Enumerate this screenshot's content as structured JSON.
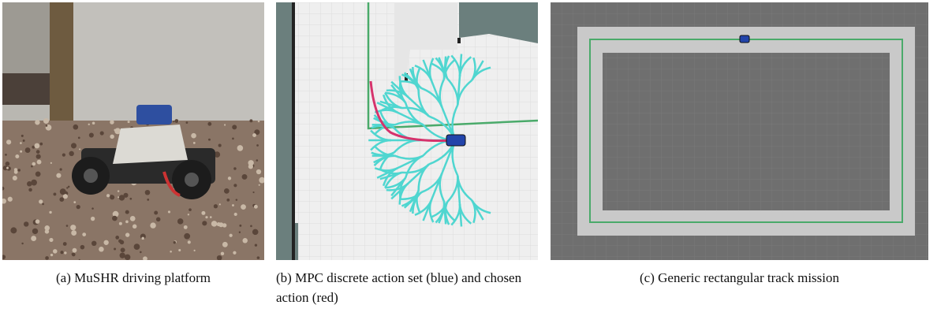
{
  "figures": [
    {
      "caption": "(a) MuSHR driving platform"
    },
    {
      "caption": "(b) MPC discrete action set (blue) and chosen action (red)"
    },
    {
      "caption": "(c) Generic rectangular track mission"
    }
  ]
}
